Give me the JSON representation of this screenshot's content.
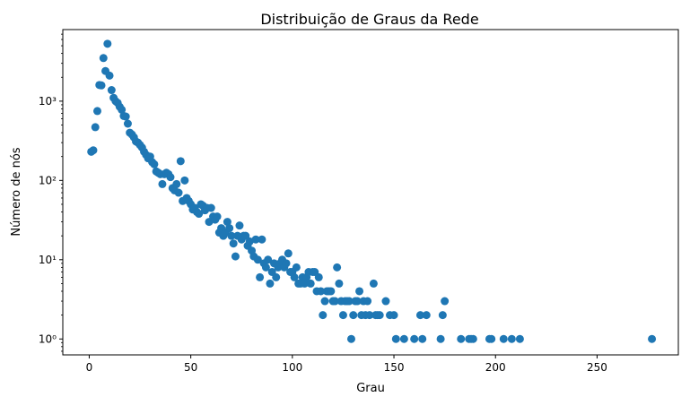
{
  "chart_data": {
    "type": "scatter",
    "title": "Distribuição de Graus da Rede",
    "xlabel": "Grau",
    "ylabel": "Número de nós",
    "xscale": "linear",
    "yscale": "log",
    "xlim": [
      -13,
      290
    ],
    "ylim": [
      0.63,
      8000
    ],
    "xticks": [
      0,
      50,
      100,
      150,
      200,
      250
    ],
    "xtick_labels": [
      "0",
      "50",
      "100",
      "150",
      "200",
      "250"
    ],
    "yticks": [
      1,
      10,
      100,
      1000
    ],
    "ytick_labels": [
      "10⁰",
      "10¹",
      "10²",
      "10³"
    ],
    "grid": false,
    "legend": "none",
    "color": "#1f77b4",
    "points": [
      [
        1,
        230
      ],
      [
        2,
        240
      ],
      [
        3,
        470
      ],
      [
        4,
        750
      ],
      [
        5,
        1600
      ],
      [
        6,
        1580
      ],
      [
        7,
        3500
      ],
      [
        8,
        2400
      ],
      [
        9,
        5300
      ],
      [
        10,
        2100
      ],
      [
        11,
        1380
      ],
      [
        12,
        1100
      ],
      [
        13,
        1000
      ],
      [
        14,
        950
      ],
      [
        15,
        850
      ],
      [
        16,
        780
      ],
      [
        17,
        650
      ],
      [
        18,
        640
      ],
      [
        19,
        520
      ],
      [
        20,
        400
      ],
      [
        21,
        380
      ],
      [
        22,
        350
      ],
      [
        23,
        310
      ],
      [
        24,
        300
      ],
      [
        25,
        280
      ],
      [
        26,
        260
      ],
      [
        27,
        230
      ],
      [
        28,
        210
      ],
      [
        29,
        190
      ],
      [
        30,
        200
      ],
      [
        31,
        170
      ],
      [
        32,
        160
      ],
      [
        33,
        130
      ],
      [
        34,
        125
      ],
      [
        35,
        120
      ],
      [
        36,
        90
      ],
      [
        37,
        120
      ],
      [
        38,
        125
      ],
      [
        39,
        120
      ],
      [
        40,
        110
      ],
      [
        41,
        80
      ],
      [
        42,
        75
      ],
      [
        43,
        90
      ],
      [
        44,
        70
      ],
      [
        45,
        175
      ],
      [
        46,
        55
      ],
      [
        47,
        100
      ],
      [
        48,
        60
      ],
      [
        49,
        55
      ],
      [
        50,
        50
      ],
      [
        51,
        43
      ],
      [
        52,
        45
      ],
      [
        53,
        40
      ],
      [
        54,
        38
      ],
      [
        55,
        50
      ],
      [
        56,
        48
      ],
      [
        57,
        42
      ],
      [
        58,
        45
      ],
      [
        59,
        30
      ],
      [
        60,
        45
      ],
      [
        61,
        35
      ],
      [
        62,
        32
      ],
      [
        63,
        35
      ],
      [
        64,
        22
      ],
      [
        65,
        25
      ],
      [
        66,
        20
      ],
      [
        67,
        22
      ],
      [
        68,
        30
      ],
      [
        69,
        25
      ],
      [
        70,
        20
      ],
      [
        71,
        16
      ],
      [
        72,
        11
      ],
      [
        73,
        20
      ],
      [
        74,
        27
      ],
      [
        75,
        18
      ],
      [
        76,
        20
      ],
      [
        77,
        20
      ],
      [
        78,
        15
      ],
      [
        79,
        17
      ],
      [
        80,
        13
      ],
      [
        81,
        11
      ],
      [
        82,
        18
      ],
      [
        83,
        10
      ],
      [
        84,
        6
      ],
      [
        85,
        18
      ],
      [
        86,
        9
      ],
      [
        87,
        8
      ],
      [
        88,
        10
      ],
      [
        89,
        5
      ],
      [
        90,
        7
      ],
      [
        91,
        9
      ],
      [
        92,
        6
      ],
      [
        93,
        8
      ],
      [
        94,
        9
      ],
      [
        95,
        10
      ],
      [
        96,
        8
      ],
      [
        97,
        9
      ],
      [
        98,
        12
      ],
      [
        99,
        7
      ],
      [
        100,
        7
      ],
      [
        101,
        6
      ],
      [
        102,
        8
      ],
      [
        103,
        5
      ],
      [
        104,
        5
      ],
      [
        105,
        6
      ],
      [
        106,
        5
      ],
      [
        107,
        6
      ],
      [
        108,
        7
      ],
      [
        109,
        5
      ],
      [
        110,
        7
      ],
      [
        111,
        7
      ],
      [
        112,
        4
      ],
      [
        113,
        6
      ],
      [
        114,
        4
      ],
      [
        115,
        2
      ],
      [
        116,
        3
      ],
      [
        117,
        4
      ],
      [
        118,
        4
      ],
      [
        119,
        4
      ],
      [
        120,
        3
      ],
      [
        121,
        3
      ],
      [
        122,
        8
      ],
      [
        123,
        5
      ],
      [
        124,
        3
      ],
      [
        125,
        2
      ],
      [
        126,
        3
      ],
      [
        127,
        3
      ],
      [
        128,
        3
      ],
      [
        129,
        1
      ],
      [
        130,
        2
      ],
      [
        131,
        3
      ],
      [
        132,
        3
      ],
      [
        133,
        4
      ],
      [
        134,
        2
      ],
      [
        135,
        3
      ],
      [
        136,
        2
      ],
      [
        137,
        3
      ],
      [
        138,
        2
      ],
      [
        140,
        5
      ],
      [
        141,
        2
      ],
      [
        142,
        2
      ],
      [
        143,
        2
      ],
      [
        146,
        3
      ],
      [
        148,
        2
      ],
      [
        150,
        2
      ],
      [
        151,
        1
      ],
      [
        155,
        1
      ],
      [
        160,
        1
      ],
      [
        163,
        2
      ],
      [
        164,
        1
      ],
      [
        166,
        2
      ],
      [
        173,
        1
      ],
      [
        174,
        2
      ],
      [
        175,
        3
      ],
      [
        183,
        1
      ],
      [
        187,
        1
      ],
      [
        188,
        1
      ],
      [
        189,
        1
      ],
      [
        197,
        1
      ],
      [
        198,
        1
      ],
      [
        204,
        1
      ],
      [
        208,
        1
      ],
      [
        212,
        1
      ],
      [
        277,
        1
      ]
    ]
  }
}
